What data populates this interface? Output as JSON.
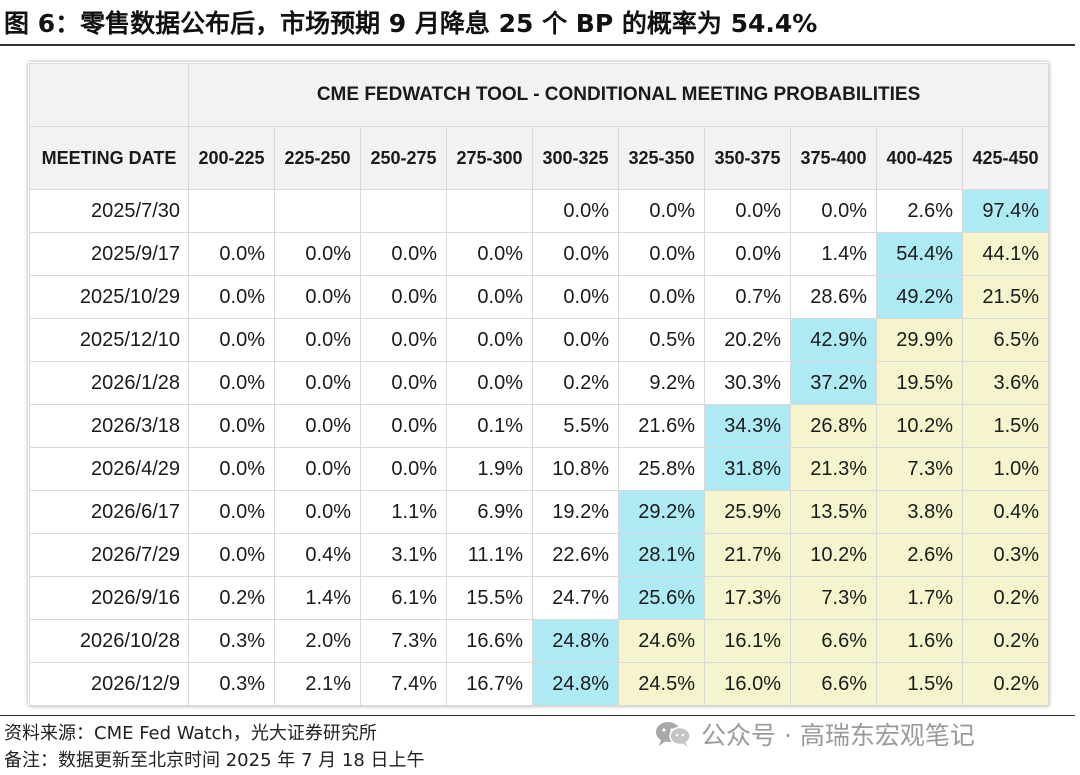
{
  "figure_title": "图 6：零售数据公布后，市场预期 9 月降息 25 个 BP 的概率为 54.4%",
  "table": {
    "tool_title": "CME FEDWATCH TOOL - CONDITIONAL MEETING PROBABILITIES",
    "date_header": "MEETING DATE",
    "rate_ranges": [
      "200-225",
      "225-250",
      "250-275",
      "275-300",
      "300-325",
      "325-350",
      "350-375",
      "375-400",
      "400-425",
      "425-450"
    ],
    "rows": [
      {
        "date": "2025/7/30",
        "values": [
          "",
          "",
          "",
          "",
          "0.0%",
          "0.0%",
          "0.0%",
          "0.0%",
          "2.6%",
          "97.4%"
        ]
      },
      {
        "date": "2025/9/17",
        "values": [
          "0.0%",
          "0.0%",
          "0.0%",
          "0.0%",
          "0.0%",
          "0.0%",
          "0.0%",
          "1.4%",
          "54.4%",
          "44.1%"
        ]
      },
      {
        "date": "2025/10/29",
        "values": [
          "0.0%",
          "0.0%",
          "0.0%",
          "0.0%",
          "0.0%",
          "0.0%",
          "0.7%",
          "28.6%",
          "49.2%",
          "21.5%"
        ]
      },
      {
        "date": "2025/12/10",
        "values": [
          "0.0%",
          "0.0%",
          "0.0%",
          "0.0%",
          "0.0%",
          "0.5%",
          "20.2%",
          "42.9%",
          "29.9%",
          "6.5%"
        ]
      },
      {
        "date": "2026/1/28",
        "values": [
          "0.0%",
          "0.0%",
          "0.0%",
          "0.0%",
          "0.2%",
          "9.2%",
          "30.3%",
          "37.2%",
          "19.5%",
          "3.6%"
        ]
      },
      {
        "date": "2026/3/18",
        "values": [
          "0.0%",
          "0.0%",
          "0.0%",
          "0.1%",
          "5.5%",
          "21.6%",
          "34.3%",
          "26.8%",
          "10.2%",
          "1.5%"
        ]
      },
      {
        "date": "2026/4/29",
        "values": [
          "0.0%",
          "0.0%",
          "0.0%",
          "1.9%",
          "10.8%",
          "25.8%",
          "31.8%",
          "21.3%",
          "7.3%",
          "1.0%"
        ]
      },
      {
        "date": "2026/6/17",
        "values": [
          "0.0%",
          "0.0%",
          "1.1%",
          "6.9%",
          "19.2%",
          "29.2%",
          "25.9%",
          "13.5%",
          "3.8%",
          "0.4%"
        ]
      },
      {
        "date": "2026/7/29",
        "values": [
          "0.0%",
          "0.4%",
          "3.1%",
          "11.1%",
          "22.6%",
          "28.1%",
          "21.7%",
          "10.2%",
          "2.6%",
          "0.3%"
        ]
      },
      {
        "date": "2026/9/16",
        "values": [
          "0.2%",
          "1.4%",
          "6.1%",
          "15.5%",
          "24.7%",
          "25.6%",
          "17.3%",
          "7.3%",
          "1.7%",
          "0.2%"
        ]
      },
      {
        "date": "2026/10/28",
        "values": [
          "0.3%",
          "2.0%",
          "7.3%",
          "16.6%",
          "24.8%",
          "24.6%",
          "16.1%",
          "6.6%",
          "1.6%",
          "0.2%"
        ]
      },
      {
        "date": "2026/12/9",
        "values": [
          "0.3%",
          "2.1%",
          "7.4%",
          "16.7%",
          "24.8%",
          "24.5%",
          "16.0%",
          "6.6%",
          "1.5%",
          "0.2%"
        ]
      }
    ],
    "mode_column_index": [
      9,
      8,
      8,
      7,
      7,
      6,
      6,
      5,
      5,
      5,
      4,
      4
    ]
  },
  "colors": {
    "mode_cell": "#aeeaf4",
    "hawkish_cell": "#f6f4cc",
    "header_bg": "#f2f2f2"
  },
  "source": "资料来源：CME Fed Watch，光大证券研究所",
  "note": "备注：数据更新至北京时间 2025 年 7 月 18 日上午",
  "watermark": {
    "icon": "wechat-icon",
    "text": "公众号 · 高瑞东宏观笔记"
  }
}
